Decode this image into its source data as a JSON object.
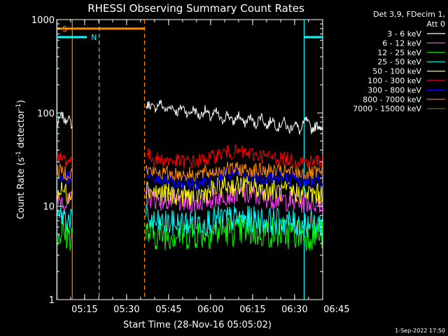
{
  "chart_data": {
    "type": "line",
    "title": "RHESSI Observing Summary Count Rates",
    "xlabel": "Start Time (28-Nov-16 05:05:02)",
    "ylabel_parts": [
      "Count Rate (s",
      "-1",
      " detector",
      "-1",
      ")"
    ],
    "x_start_min": 5.0333,
    "x_end_min": 100.9,
    "x_ticks": [
      {
        "min": 15,
        "label": "05:15"
      },
      {
        "min": 30,
        "label": "05:30"
      },
      {
        "min": 45,
        "label": "05:45"
      },
      {
        "min": 60,
        "label": "06:00"
      },
      {
        "min": 75,
        "label": "06:15"
      },
      {
        "min": 90,
        "label": "06:30"
      },
      {
        "min": 105,
        "label": "06:45"
      }
    ],
    "y_scale": "log",
    "ylim": [
      1,
      1000
    ],
    "y_ticks": [
      {
        "v": 1,
        "label": "1"
      },
      {
        "v": 10,
        "label": "10"
      },
      {
        "v": 100,
        "label": "100"
      },
      {
        "v": 1000,
        "label": "1000"
      }
    ],
    "legend_header": [
      "Det 3,9, FDecim 1,",
      "Att 0"
    ],
    "legend_position": "right",
    "series": [
      {
        "name": "3 - 6 keV",
        "color": "#ffffff",
        "segments": [
          {
            "x": [
              5.1,
              6,
              7,
              8,
              9,
              10,
              10.6
            ],
            "y": [
              72,
              85,
              95,
              80,
              92,
              78,
              72
            ]
          },
          {
            "x": [
              36.8,
              38,
              40,
              42,
              44,
              46,
              48,
              50,
              52,
              54,
              56,
              58,
              60,
              62,
              64,
              66,
              68,
              70,
              72,
              74,
              76,
              78,
              80,
              82,
              84,
              86,
              88,
              90,
              92,
              94,
              96,
              98,
              100.5
            ],
            "y": [
              115,
              125,
              110,
              130,
              105,
              120,
              100,
              118,
              95,
              112,
              90,
              108,
              88,
              104,
              80,
              100,
              78,
              96,
              75,
              92,
              72,
              96,
              70,
              88,
              68,
              84,
              64,
              80,
              62,
              86,
              66,
              74,
              70
            ]
          }
        ]
      },
      {
        "name": "6 - 12 keV",
        "color": "#ff3cff",
        "segments": [
          {
            "x": [
              5.1,
              7,
              9,
              10.6
            ],
            "y": [
              11,
              12,
              10.5,
              11.5
            ]
          },
          {
            "x": [
              36.8,
              40,
              45,
              50,
              55,
              60,
              65,
              70,
              75,
              80,
              85,
              90,
              95,
              100.5
            ],
            "y": [
              13,
              12,
              11.5,
              11,
              11,
              12,
              13.5,
              13.5,
              13,
              12.5,
              12,
              11,
              11,
              11
            ]
          }
        ]
      },
      {
        "name": "12 - 25 keV",
        "color": "#00ff00",
        "segments": [
          {
            "x": [
              5.1,
              7,
              9,
              10.6
            ],
            "y": [
              5,
              5.4,
              4.8,
              5.2
            ]
          },
          {
            "x": [
              36.8,
              40,
              45,
              50,
              55,
              60,
              65,
              70,
              75,
              80,
              85,
              90,
              95,
              100.5
            ],
            "y": [
              5.2,
              5.0,
              5.1,
              5.0,
              5.2,
              5.3,
              5.6,
              5.5,
              5.4,
              5.3,
              5.2,
              5.1,
              5.0,
              5.0
            ]
          }
        ]
      },
      {
        "name": "25 - 50 keV",
        "color": "#00ffff",
        "segments": [
          {
            "x": [
              5.1,
              7,
              9,
              10.6
            ],
            "y": [
              7.5,
              8,
              7.2,
              7.8
            ]
          },
          {
            "x": [
              36.8,
              40,
              45,
              50,
              55,
              60,
              65,
              70,
              75,
              80,
              85,
              90,
              95,
              100.5
            ],
            "y": [
              7.5,
              6.6,
              6.5,
              6.5,
              6.7,
              7.0,
              7.4,
              7.3,
              7.2,
              7.0,
              6.8,
              6.6,
              6.5,
              6.5
            ]
          }
        ]
      },
      {
        "name": "50 - 100 keV",
        "color": "#ffff00",
        "segments": [
          {
            "x": [
              5.1,
              7,
              9,
              10.6
            ],
            "y": [
              14,
              15,
              13.5,
              14.5
            ]
          },
          {
            "x": [
              36.8,
              40,
              45,
              50,
              55,
              60,
              65,
              70,
              75,
              80,
              85,
              90,
              95,
              100.5
            ],
            "y": [
              16,
              14,
              13.5,
              13,
              13,
              14.5,
              16.5,
              16.5,
              16,
              15,
              14.5,
              14,
              13.5,
              13.5
            ]
          }
        ]
      },
      {
        "name": "100 - 300 keV",
        "color": "#ff0000",
        "segments": [
          {
            "x": [
              5.1,
              7,
              9,
              10.6
            ],
            "y": [
              31,
              33,
              30,
              32
            ]
          },
          {
            "x": [
              36.8,
              37.5,
              40,
              45,
              50,
              55,
              60,
              65,
              70,
              75,
              80,
              85,
              90,
              95,
              100.5
            ],
            "y": [
              40,
              36,
              32,
              31,
              30,
              30,
              33,
              38,
              38,
              36,
              34,
              33,
              31,
              30,
              31
            ]
          }
        ]
      },
      {
        "name": "300 - 800 keV",
        "color": "#0000ff",
        "segments": [
          {
            "x": [
              5.1,
              7,
              9,
              10.6
            ],
            "y": [
              20,
              21,
              19.5,
              20.5
            ]
          },
          {
            "x": [
              36.8,
              40,
              45,
              50,
              55,
              60,
              65,
              70,
              75,
              80,
              85,
              90,
              95,
              100.5
            ],
            "y": [
              22,
              20,
              19,
              18,
              18,
              19.5,
              22,
              22,
              21,
              20.5,
              20,
              19.5,
              19,
              19
            ]
          }
        ]
      },
      {
        "name": "800 - 7000 keV",
        "color": "#ff8c00",
        "segments": [
          {
            "x": [
              5.1,
              7,
              9,
              10.6
            ],
            "y": [
              23,
              24,
              22.5,
              23.5
            ]
          },
          {
            "x": [
              36.8,
              40,
              45,
              50,
              55,
              60,
              65,
              70,
              75,
              80,
              85,
              90,
              95,
              100.5
            ],
            "y": [
              25,
              23,
              22.5,
              22,
              22,
              23,
              25,
              25,
              24.5,
              24,
              23.5,
              23,
              22.5,
              22.5
            ]
          }
        ]
      },
      {
        "name": "7000 - 15000 keV",
        "color": "#8b6b00",
        "segments": []
      }
    ],
    "annotations": {
      "saa_label": "S",
      "saa_color": "#ff8c00",
      "saa_bar": {
        "x0": 5.1,
        "x1": 36.4,
        "y": 800
      },
      "saa_lines": [
        {
          "x": 10.6,
          "style": "solid"
        },
        {
          "x": 36.4,
          "style": "dashed"
        }
      ],
      "night_label": "N",
      "night_color": "#00ffff",
      "night_bars": [
        {
          "x0": 5.1,
          "x1": 15.8,
          "y": 650
        },
        {
          "x0": 93.5,
          "x1": 100.9,
          "y": 650
        }
      ],
      "night_lines": [
        {
          "x": 5.2,
          "style": "solid"
        },
        {
          "x": 20.2,
          "style": "dashed"
        },
        {
          "x": 93.4,
          "style": "solid"
        },
        {
          "x": 100.7,
          "style": "dashed"
        }
      ]
    }
  },
  "footer_date": "1-Sep-2022 17:50"
}
